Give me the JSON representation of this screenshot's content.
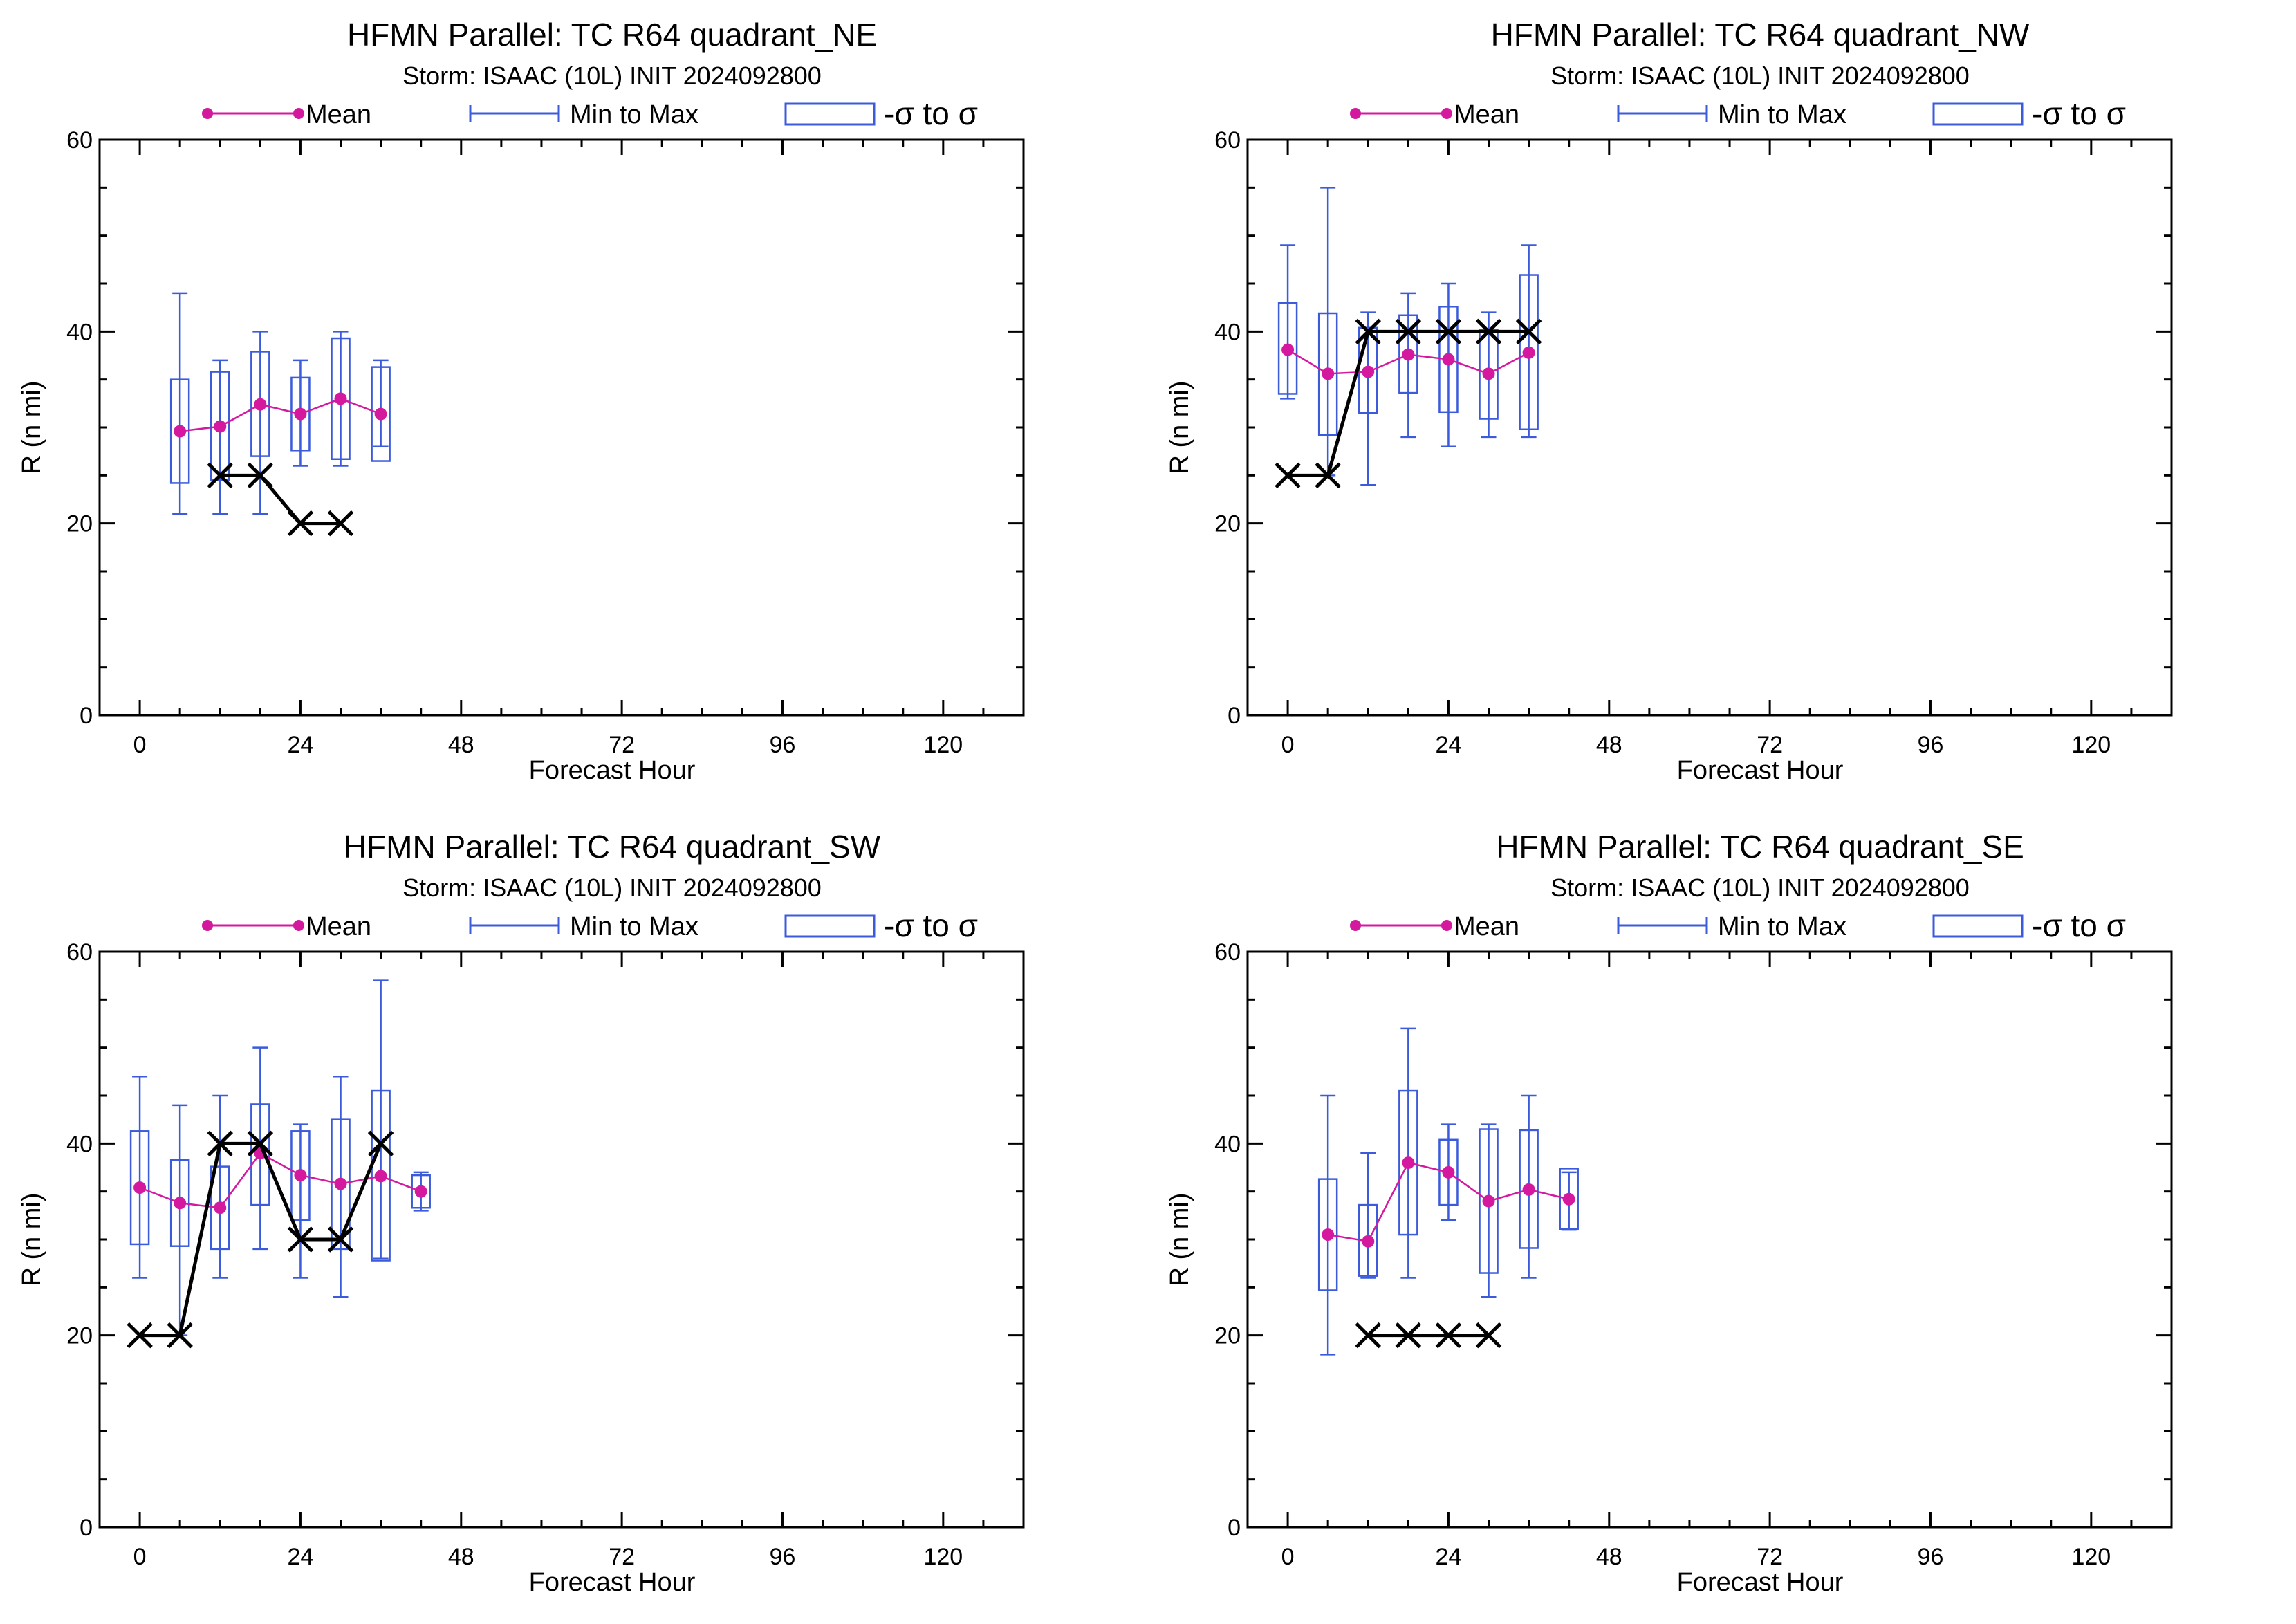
{
  "colors": {
    "mean": "#d4199f",
    "range": "#3b5bdb",
    "box": "#3b5bdb",
    "observed": "#000000",
    "frame": "#000000"
  },
  "legend": {
    "mean_label": "Mean",
    "minmax_label": "Min to Max",
    "sigma_label": "-σ to σ"
  },
  "chart_data": [
    {
      "type": "box",
      "title": "HFMN Parallel: TC  R64 quadrant_NE",
      "subtitle": "Storm: ISAAC (10L) INIT 2024092800",
      "xlabel": "Forecast Hour",
      "ylabel": "R (n mi)",
      "xlim": [
        -6,
        132
      ],
      "ylim": [
        0,
        60
      ],
      "xticks": [
        0,
        24,
        48,
        72,
        96,
        120
      ],
      "yticks": [
        0,
        20,
        40,
        60
      ],
      "ensemble": [
        {
          "x": 6,
          "mean": 29.6,
          "min": 21,
          "max": 44,
          "lo": 24.2,
          "hi": 35
        },
        {
          "x": 12,
          "mean": 30.1,
          "min": 21,
          "max": 37,
          "lo": 24.5,
          "hi": 35.8
        },
        {
          "x": 18,
          "mean": 32.4,
          "min": 21,
          "max": 40,
          "lo": 27,
          "hi": 37.9
        },
        {
          "x": 24,
          "mean": 31.4,
          "min": 26,
          "max": 37,
          "lo": 27.6,
          "hi": 35.2
        },
        {
          "x": 30,
          "mean": 33,
          "min": 26,
          "max": 40,
          "lo": 26.7,
          "hi": 39.3
        },
        {
          "x": 36,
          "mean": 31.4,
          "min": 28,
          "max": 37,
          "lo": 26.5,
          "hi": 36.3
        }
      ],
      "observed": [
        {
          "x": 12,
          "y": 25
        },
        {
          "x": 18,
          "y": 25
        },
        {
          "x": 24,
          "y": 20
        },
        {
          "x": 30,
          "y": 20
        }
      ]
    },
    {
      "type": "box",
      "title": "HFMN Parallel: TC  R64 quadrant_NW",
      "subtitle": "Storm: ISAAC (10L) INIT 2024092800",
      "xlabel": "Forecast Hour",
      "ylabel": "R (n mi)",
      "xlim": [
        -6,
        132
      ],
      "ylim": [
        0,
        60
      ],
      "xticks": [
        0,
        24,
        48,
        72,
        96,
        120
      ],
      "yticks": [
        0,
        20,
        40,
        60
      ],
      "ensemble": [
        {
          "x": 0,
          "mean": 38.1,
          "min": 33,
          "max": 49,
          "lo": 33.5,
          "hi": 43
        },
        {
          "x": 6,
          "mean": 35.6,
          "min": 25,
          "max": 55,
          "lo": 29.2,
          "hi": 41.9
        },
        {
          "x": 12,
          "mean": 35.8,
          "min": 24,
          "max": 42,
          "lo": 31.5,
          "hi": 40.4
        },
        {
          "x": 18,
          "mean": 37.6,
          "min": 29,
          "max": 44,
          "lo": 33.6,
          "hi": 41.7
        },
        {
          "x": 24,
          "mean": 37.1,
          "min": 28,
          "max": 45,
          "lo": 31.6,
          "hi": 42.6
        },
        {
          "x": 30,
          "mean": 35.6,
          "min": 29,
          "max": 42,
          "lo": 30.9,
          "hi": 40.2
        },
        {
          "x": 36,
          "mean": 37.8,
          "min": 29,
          "max": 49,
          "lo": 29.8,
          "hi": 45.9
        }
      ],
      "observed": [
        {
          "x": 0,
          "y": 25
        },
        {
          "x": 6,
          "y": 25
        },
        {
          "x": 12,
          "y": 40
        },
        {
          "x": 18,
          "y": 40
        },
        {
          "x": 24,
          "y": 40
        },
        {
          "x": 30,
          "y": 40
        },
        {
          "x": 36,
          "y": 40
        }
      ]
    },
    {
      "type": "box",
      "title": "HFMN Parallel: TC  R64 quadrant_SW",
      "subtitle": "Storm: ISAAC (10L) INIT 2024092800",
      "xlabel": "Forecast Hour",
      "ylabel": "R (n mi)",
      "xlim": [
        -6,
        132
      ],
      "ylim": [
        0,
        60
      ],
      "xticks": [
        0,
        24,
        48,
        72,
        96,
        120
      ],
      "yticks": [
        0,
        20,
        40,
        60
      ],
      "ensemble": [
        {
          "x": 0,
          "mean": 35.4,
          "min": 26,
          "max": 47,
          "lo": 29.5,
          "hi": 41.3
        },
        {
          "x": 6,
          "mean": 33.8,
          "min": 20,
          "max": 44,
          "lo": 29.3,
          "hi": 38.3
        },
        {
          "x": 12,
          "mean": 33.3,
          "min": 26,
          "max": 45,
          "lo": 29,
          "hi": 37.6
        },
        {
          "x": 18,
          "mean": 39,
          "min": 29,
          "max": 50,
          "lo": 33.6,
          "hi": 44.1
        },
        {
          "x": 24,
          "mean": 36.7,
          "min": 26,
          "max": 42,
          "lo": 32,
          "hi": 41.3
        },
        {
          "x": 30,
          "mean": 35.8,
          "min": 24,
          "max": 47,
          "lo": 29,
          "hi": 42.5
        },
        {
          "x": 36,
          "mean": 36.6,
          "min": 28,
          "max": 57,
          "lo": 27.8,
          "hi": 45.5
        },
        {
          "x": 42,
          "mean": 35,
          "min": 33,
          "max": 37,
          "lo": 33.3,
          "hi": 36.7
        }
      ],
      "observed": [
        {
          "x": 0,
          "y": 20
        },
        {
          "x": 6,
          "y": 20
        },
        {
          "x": 12,
          "y": 40
        },
        {
          "x": 18,
          "y": 40
        },
        {
          "x": 24,
          "y": 30
        },
        {
          "x": 30,
          "y": 30
        },
        {
          "x": 36,
          "y": 40
        }
      ]
    },
    {
      "type": "box",
      "title": "HFMN Parallel: TC  R64 quadrant_SE",
      "subtitle": "Storm: ISAAC (10L) INIT 2024092800",
      "xlabel": "Forecast Hour",
      "ylabel": "R (n mi)",
      "xlim": [
        -6,
        132
      ],
      "ylim": [
        0,
        60
      ],
      "xticks": [
        0,
        24,
        48,
        72,
        96,
        120
      ],
      "yticks": [
        0,
        20,
        40,
        60
      ],
      "ensemble": [
        {
          "x": 6,
          "mean": 30.5,
          "min": 18,
          "max": 45,
          "lo": 24.7,
          "hi": 36.3
        },
        {
          "x": 12,
          "mean": 29.8,
          "min": 26,
          "max": 39,
          "lo": 26.2,
          "hi": 33.6
        },
        {
          "x": 18,
          "mean": 38,
          "min": 26,
          "max": 52,
          "lo": 30.5,
          "hi": 45.5
        },
        {
          "x": 24,
          "mean": 37,
          "min": 32,
          "max": 42,
          "lo": 33.6,
          "hi": 40.4
        },
        {
          "x": 30,
          "mean": 34,
          "min": 24,
          "max": 42,
          "lo": 26.5,
          "hi": 41.5
        },
        {
          "x": 36,
          "mean": 35.2,
          "min": 26,
          "max": 45,
          "lo": 29.1,
          "hi": 41.4
        },
        {
          "x": 42,
          "mean": 34.2,
          "min": 31,
          "max": 37,
          "lo": 31.1,
          "hi": 37.4
        }
      ],
      "observed": [
        {
          "x": 12,
          "y": 20
        },
        {
          "x": 18,
          "y": 20
        },
        {
          "x": 24,
          "y": 20
        },
        {
          "x": 30,
          "y": 20
        }
      ]
    }
  ]
}
